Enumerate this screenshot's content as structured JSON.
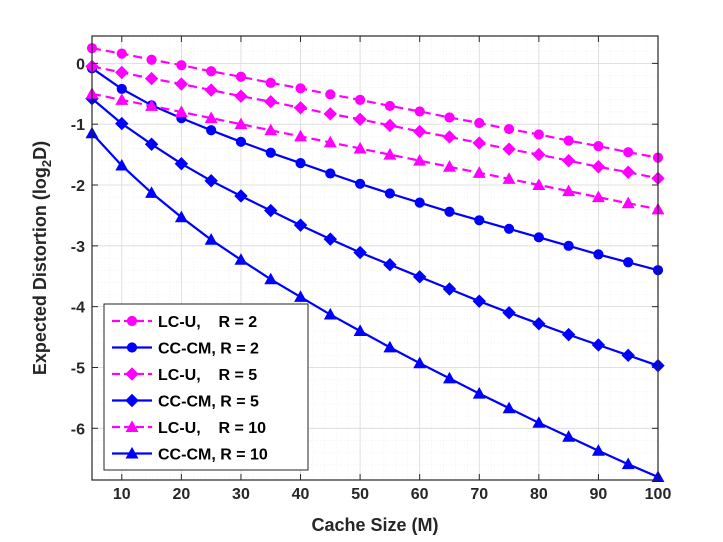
{
  "chart_data": {
    "type": "line",
    "title": "",
    "xlabel": "Cache Size (M)",
    "ylabel_main": "Expected Distortion (log",
    "ylabel_sub": "2",
    "ylabel_tail": "D)",
    "xlim": [
      5,
      100
    ],
    "ylim": [
      -6.85,
      0.45
    ],
    "xticks": [
      10,
      20,
      30,
      40,
      50,
      60,
      70,
      80,
      90,
      100
    ],
    "xtick_labels": [
      "10",
      "20",
      "30",
      "40",
      "50",
      "60",
      "70",
      "80",
      "90",
      "100"
    ],
    "yticks": [
      0,
      -1,
      -2,
      -3,
      -4,
      -5,
      -6
    ],
    "ytick_labels": [
      "0",
      "-1",
      "-2",
      "-3",
      "-4",
      "-5",
      "-6"
    ],
    "grid": true,
    "legend_position": "bottom-left",
    "x": [
      5,
      10,
      15,
      20,
      25,
      30,
      35,
      40,
      45,
      50,
      55,
      60,
      65,
      70,
      75,
      80,
      85,
      90,
      95,
      100
    ],
    "series": [
      {
        "name": "LC-U,    R = 2",
        "color": "#ff00ff",
        "dash": true,
        "marker": "circle",
        "values": [
          0.25,
          0.16,
          0.06,
          -0.03,
          -0.13,
          -0.22,
          -0.32,
          -0.41,
          -0.51,
          -0.6,
          -0.7,
          -0.79,
          -0.89,
          -0.98,
          -1.08,
          -1.17,
          -1.27,
          -1.36,
          -1.46,
          -1.55
        ]
      },
      {
        "name": "CC-CM, R = 2",
        "color": "#0000ff",
        "dash": false,
        "marker": "circle",
        "values": [
          -0.08,
          -0.42,
          -0.69,
          -0.9,
          -1.1,
          -1.29,
          -1.47,
          -1.64,
          -1.81,
          -1.98,
          -2.14,
          -2.29,
          -2.44,
          -2.58,
          -2.72,
          -2.86,
          -3.0,
          -3.14,
          -3.27,
          -3.4
        ]
      },
      {
        "name": "LC-U,    R = 5",
        "color": "#ff00ff",
        "dash": true,
        "marker": "diamond",
        "values": [
          -0.05,
          -0.15,
          -0.25,
          -0.34,
          -0.44,
          -0.54,
          -0.63,
          -0.73,
          -0.83,
          -0.92,
          -1.02,
          -1.12,
          -1.21,
          -1.31,
          -1.41,
          -1.5,
          -1.6,
          -1.7,
          -1.79,
          -1.89
        ]
      },
      {
        "name": "CC-CM, R = 5",
        "color": "#0000ff",
        "dash": false,
        "marker": "diamond",
        "values": [
          -0.58,
          -0.99,
          -1.33,
          -1.65,
          -1.93,
          -2.18,
          -2.42,
          -2.66,
          -2.89,
          -3.11,
          -3.31,
          -3.51,
          -3.71,
          -3.91,
          -4.1,
          -4.28,
          -4.46,
          -4.63,
          -4.8,
          -4.97
        ]
      },
      {
        "name": "LC-U,    R = 10",
        "color": "#ff00ff",
        "dash": true,
        "marker": "triangle",
        "values": [
          -0.5,
          -0.6,
          -0.7,
          -0.8,
          -0.9,
          -1.0,
          -1.1,
          -1.2,
          -1.3,
          -1.4,
          -1.5,
          -1.6,
          -1.7,
          -1.8,
          -1.9,
          -2.0,
          -2.1,
          -2.2,
          -2.3,
          -2.4
        ]
      },
      {
        "name": "CC-CM, R = 10",
        "color": "#0000ff",
        "dash": false,
        "marker": "triangle",
        "values": [
          -1.15,
          -1.68,
          -2.13,
          -2.53,
          -2.9,
          -3.23,
          -3.55,
          -3.84,
          -4.13,
          -4.4,
          -4.67,
          -4.93,
          -5.18,
          -5.43,
          -5.67,
          -5.91,
          -6.14,
          -6.37,
          -6.59,
          -6.8
        ]
      }
    ]
  }
}
